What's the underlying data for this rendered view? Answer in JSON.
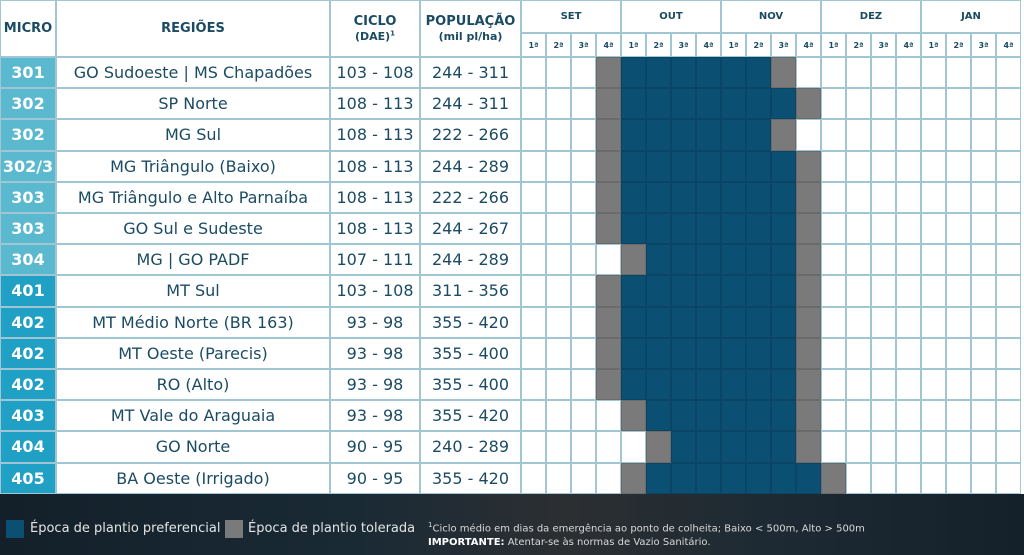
{
  "colors": {
    "preferential": "#0b4f73",
    "tolerated": "#7a7a7a",
    "header_border": "#9fc6d2",
    "micro_300s": "#5ab8cf",
    "micro_400s": "#1fa0c4"
  },
  "table": {
    "headers": {
      "micro": "MICRO",
      "regioes": "REGIÕES",
      "ciclo": "CICLO",
      "ciclo_sub": "(DAE)",
      "ciclo_sup": "1",
      "populacao": "POPULAÇÃO",
      "populacao_sub": "(mil pl/ha)"
    },
    "months": [
      "SET",
      "OUT",
      "NOV",
      "DEZ",
      "JAN"
    ],
    "weeks": [
      "1ª",
      "2ª",
      "3ª",
      "4ª"
    ],
    "rows": [
      {
        "micro": "301",
        "region": "GO Sudoeste | MS Chapadões",
        "cycle": "103 - 108",
        "population": "244 - 311",
        "schedule": "000T"
      },
      {
        "micro": "302",
        "region": "SP Norte",
        "cycle": "108 - 113",
        "population": "244 - 311",
        "schedule": "000T"
      },
      {
        "micro": "302",
        "region": "MG Sul",
        "cycle": "108 - 113",
        "population": "222 - 266",
        "schedule": "000T"
      },
      {
        "micro": "302/3",
        "region": "MG Triângulo (Baixo)",
        "cycle": "108 - 113",
        "population": "244 - 289",
        "schedule": "000T"
      },
      {
        "micro": "303",
        "region": "MG Triângulo e Alto Parnaíba",
        "cycle": "108 - 113",
        "population": "222 - 266",
        "schedule": "000T"
      },
      {
        "micro": "303",
        "region": "GO Sul e Sudeste",
        "cycle": "108 - 113",
        "population": "244 - 267",
        "schedule": "000T"
      },
      {
        "micro": "304",
        "region": "MG | GO PADF",
        "cycle": "107 - 111",
        "population": "244 - 289",
        "schedule": "0000"
      },
      {
        "micro": "401",
        "region": "MT Sul",
        "cycle": "103 - 108",
        "population": "311 - 356",
        "schedule": "000T"
      },
      {
        "micro": "402",
        "region": "MT Médio Norte (BR 163)",
        "cycle": "93 - 98",
        "population": "355 - 420",
        "schedule": "000T"
      },
      {
        "micro": "402",
        "region": "MT Oeste (Parecis)",
        "cycle": "93 - 98",
        "population": "355 - 400",
        "schedule": "000T"
      },
      {
        "micro": "402",
        "region": "RO (Alto)",
        "cycle": "93 - 98",
        "population": "355 - 400",
        "schedule": "000T"
      },
      {
        "micro": "403",
        "region": "MT Vale do Araguaia",
        "cycle": "93 - 98",
        "population": "355 - 420",
        "schedule": "0000"
      },
      {
        "micro": "404",
        "region": "GO Norte",
        "cycle": "90 - 95",
        "population": "240 - 289",
        "schedule": "0000"
      },
      {
        "micro": "405",
        "region": "BA Oeste (Irrigado)",
        "cycle": "90 - 95",
        "population": "355 - 420",
        "schedule": "0000"
      }
    ],
    "schedules": [
      "000TPPPPPPTF0000000",
      "000TPPPPPPPT0000000",
      "000TPPPPPPTF0000000",
      "000TPPPPPPPT0000000",
      "000TPPPPPPPT0000000",
      "000TPPPPPPPT0000000",
      "0000TPPPPPPT0000000",
      "000TPPPPPPPT0000000",
      "000TPPPPPPPT0000000",
      "000TPPPPPPPT0000000",
      "000TPPPPPPPT0000000",
      "0000TPPPPPPT0000000",
      "00000TPPPPPT0000000",
      "0000TPPPPPPPT000000"
    ]
  },
  "legend": {
    "preferential_label": "Época de plantio preferencial",
    "tolerated_label": "Época de plantio tolerada",
    "footnote_sup": "1",
    "footnote": "Ciclo médio em dias da emergência ao ponto de colheita; Baixo < 500m, Alto > 500m",
    "important_label": "IMPORTANTE:",
    "important_text": " Atentar-se às normas de Vazio Sanitário."
  }
}
